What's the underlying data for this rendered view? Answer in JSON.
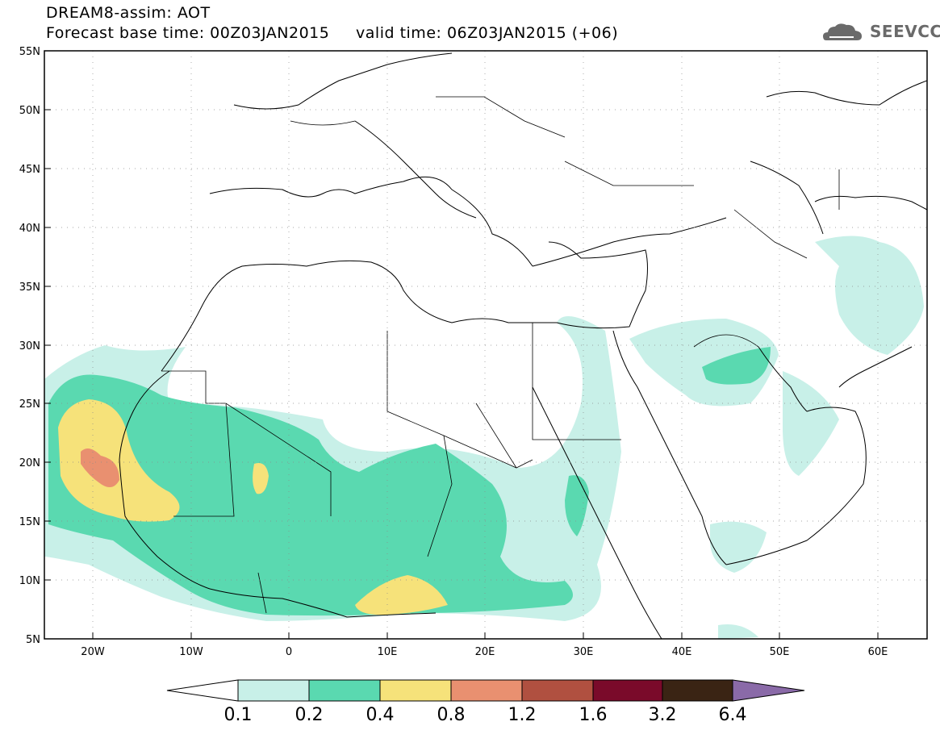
{
  "header": {
    "line1": "DREAM8-assim: AOT",
    "line2": "Forecast base time: 00Z03JAN2015     valid time: 06Z03JAN2015 (+06)"
  },
  "logo": {
    "text": "SEEVCCC",
    "icon": "cloud-logo-icon"
  },
  "map": {
    "lat_range": [
      5,
      55
    ],
    "lon_range": [
      -25,
      65
    ],
    "lat_labels": [
      "5N",
      "10N",
      "15N",
      "20N",
      "25N",
      "30N",
      "35N",
      "40N",
      "45N",
      "50N",
      "55N"
    ],
    "lon_labels": [
      "20W",
      "10W",
      "0",
      "10E",
      "20E",
      "30E",
      "40E",
      "50E",
      "60E"
    ],
    "grid": true
  },
  "colorbar": {
    "labels": [
      "0.1",
      "0.2",
      "0.4",
      "0.8",
      "1.2",
      "1.6",
      "3.2",
      "6.4"
    ],
    "colors": [
      "#ffffff",
      "#c8f0e8",
      "#5ad9b0",
      "#f6e27a",
      "#e99070",
      "#b05040",
      "#7a0a2a",
      "#3a2414",
      "#8a6aa8"
    ]
  }
}
